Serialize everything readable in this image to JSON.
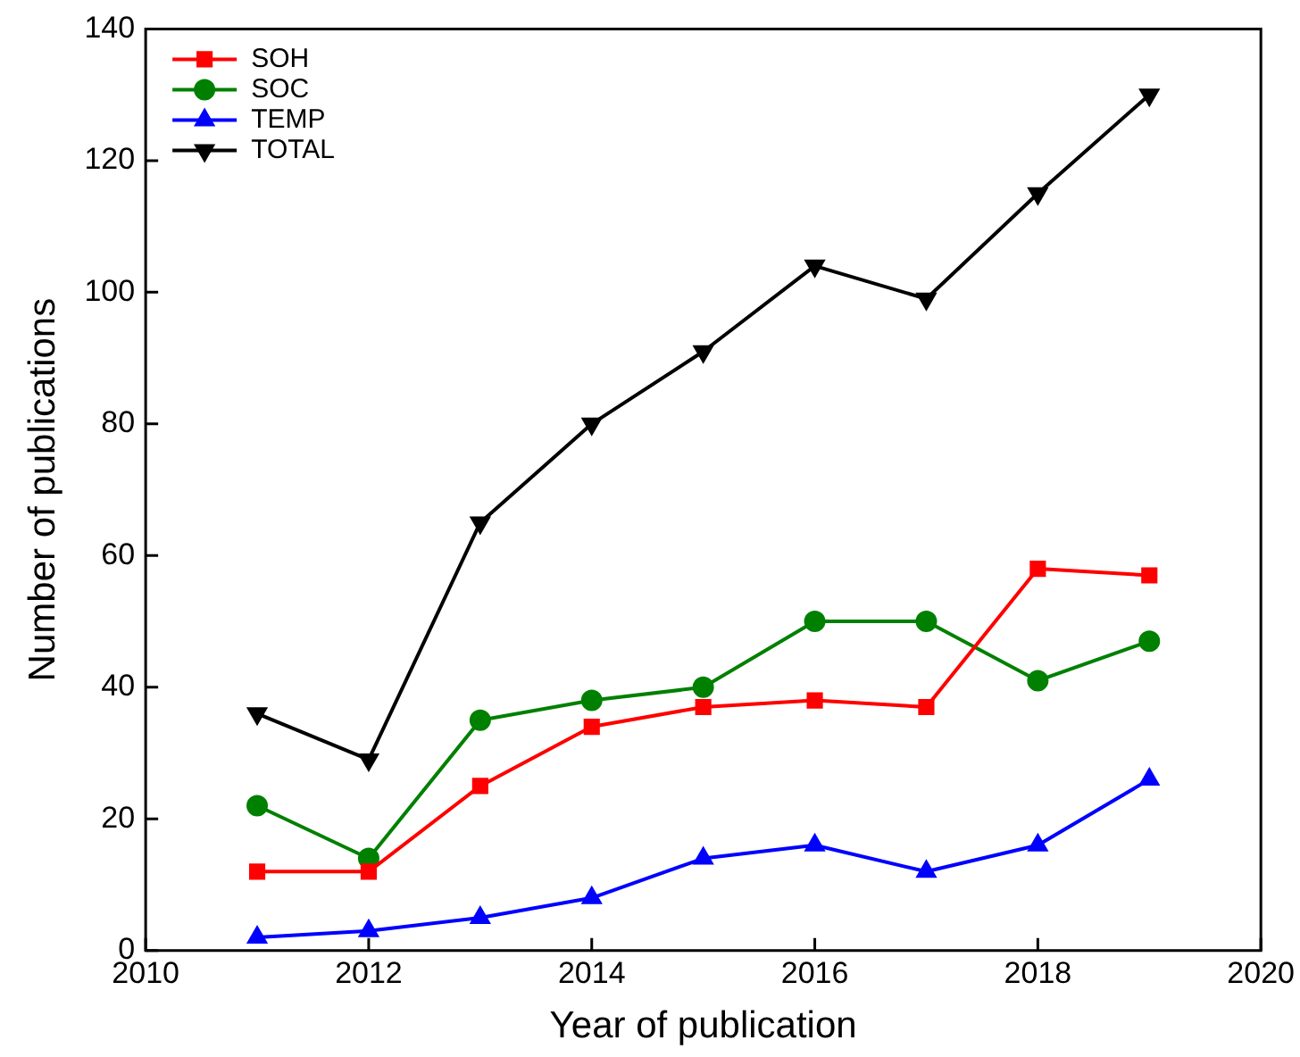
{
  "chart_data": {
    "type": "line",
    "xlabel": "Year of publication",
    "ylabel": "Number of publications",
    "x": [
      2011,
      2012,
      2013,
      2014,
      2015,
      2016,
      2017,
      2018,
      2019
    ],
    "xlim": [
      2010,
      2020
    ],
    "xticks": [
      2010,
      2012,
      2014,
      2016,
      2018,
      2020
    ],
    "ylim": [
      0,
      140
    ],
    "yticks": [
      0,
      20,
      40,
      60,
      80,
      100,
      120,
      140
    ],
    "grid": false,
    "legend": "top left",
    "line_style": "solid",
    "series": [
      {
        "name": "SOH",
        "color": "#ff0000",
        "marker": "square",
        "values": [
          12,
          12,
          25,
          34,
          37,
          38,
          37,
          58,
          57
        ]
      },
      {
        "name": "SOC",
        "color": "#008000",
        "marker": "circle",
        "values": [
          22,
          14,
          35,
          38,
          40,
          50,
          50,
          41,
          47
        ]
      },
      {
        "name": "TEMP",
        "color": "#0000ff",
        "marker": "triangle",
        "values": [
          2,
          3,
          5,
          8,
          14,
          16,
          12,
          16,
          26
        ]
      },
      {
        "name": "TOTAL",
        "color": "#000000",
        "marker": "triangle-down",
        "values": [
          36,
          29,
          65,
          80,
          91,
          104,
          99,
          115,
          130
        ]
      }
    ]
  }
}
